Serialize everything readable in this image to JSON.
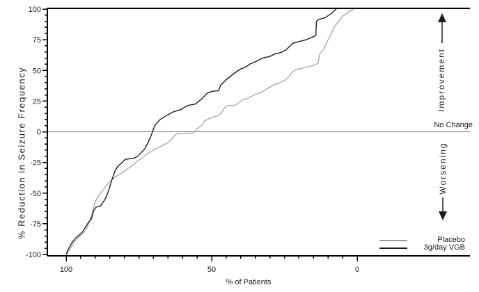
{
  "chart_data": {
    "type": "line",
    "title": "",
    "xlabel": "% of Patients",
    "ylabel": "% Reduction in Seizure Frequency",
    "x_ticks": [
      100,
      50,
      0
    ],
    "y_ticks": [
      100,
      75,
      50,
      25,
      0,
      -25,
      -50,
      -75,
      -100
    ],
    "x_minor_step": 5,
    "y_minor_step": 5,
    "xlim": [
      100,
      0
    ],
    "ylim": [
      -100,
      100
    ],
    "x_axis_reversed": true,
    "grid": "off",
    "reference_line": {
      "y": 0,
      "label": "No Change",
      "color": "#808080"
    },
    "annotations": {
      "improvement": "Improvement",
      "no_change": "No Change",
      "worsening": "Worsening"
    },
    "legend": {
      "position": "bottom-right",
      "entries": [
        "Placebo",
        "3g/day VGB"
      ]
    },
    "axis_color": "#000000",
    "text_color": "#1a1a1a",
    "series": [
      {
        "name": "Placebo",
        "color": "#9c9c9c",
        "points": [
          [
            100,
            -100
          ],
          [
            99,
            -97
          ],
          [
            98,
            -93
          ],
          [
            97,
            -89.5
          ],
          [
            96,
            -87
          ],
          [
            95,
            -84.5
          ],
          [
            94,
            -82.5
          ],
          [
            93.3,
            -80.5
          ],
          [
            92.5,
            -76
          ],
          [
            91.8,
            -72
          ],
          [
            91,
            -66
          ],
          [
            90,
            -57
          ],
          [
            88.8,
            -52
          ],
          [
            87,
            -46.5
          ],
          [
            85.2,
            -41
          ],
          [
            83.2,
            -37
          ],
          [
            81.5,
            -34.5
          ],
          [
            80,
            -32
          ],
          [
            78.5,
            -29.5
          ],
          [
            76.6,
            -26.5
          ],
          [
            75.6,
            -24
          ],
          [
            73.7,
            -21
          ],
          [
            72.5,
            -18.5
          ],
          [
            71.3,
            -17
          ],
          [
            69.4,
            -14
          ],
          [
            67,
            -11.5
          ],
          [
            64.8,
            -8.5
          ],
          [
            63.6,
            -5.5
          ],
          [
            62.5,
            -2.5
          ],
          [
            61.8,
            -1.5
          ],
          [
            56.2,
            -1
          ],
          [
            55,
            2.5
          ],
          [
            53.3,
            5.5
          ],
          [
            52.6,
            8.5
          ],
          [
            50.2,
            11.5
          ],
          [
            47.8,
            13
          ],
          [
            46.6,
            15.5
          ],
          [
            45.4,
            20
          ],
          [
            44.5,
            21.5
          ],
          [
            42.2,
            21.5
          ],
          [
            41.4,
            22.5
          ],
          [
            40.2,
            24.5
          ],
          [
            39,
            26.5
          ],
          [
            37.8,
            27
          ],
          [
            36.6,
            28.5
          ],
          [
            35.4,
            30
          ],
          [
            34.2,
            31
          ],
          [
            33,
            32
          ],
          [
            31.8,
            34
          ],
          [
            30.6,
            35.5
          ],
          [
            29.4,
            37
          ],
          [
            28.2,
            38.5
          ],
          [
            27,
            39.5
          ],
          [
            25.8,
            41
          ],
          [
            24.6,
            42.5
          ],
          [
            23.4,
            45
          ],
          [
            22.2,
            49
          ],
          [
            20.5,
            51
          ],
          [
            17.5,
            52.5
          ],
          [
            15,
            54
          ],
          [
            13.4,
            56
          ],
          [
            12.9,
            63.5
          ],
          [
            11.5,
            67
          ],
          [
            10.3,
            73.5
          ],
          [
            9.1,
            79
          ],
          [
            7.9,
            85
          ],
          [
            6.7,
            89
          ],
          [
            4.8,
            94.5
          ],
          [
            2.6,
            98
          ],
          [
            1.2,
            100
          ]
        ]
      },
      {
        "name": "3g/day VGB",
        "color": "#1a1a1a",
        "points": [
          [
            100,
            -100
          ],
          [
            99.3,
            -96
          ],
          [
            98.4,
            -92
          ],
          [
            97.4,
            -88.5
          ],
          [
            96.4,
            -86
          ],
          [
            95.2,
            -83.5
          ],
          [
            94.3,
            -81.5
          ],
          [
            93.3,
            -77.5
          ],
          [
            92.2,
            -73.5
          ],
          [
            91.3,
            -71
          ],
          [
            90.5,
            -64
          ],
          [
            89.7,
            -61.5
          ],
          [
            88.2,
            -60.5
          ],
          [
            86.6,
            -55
          ],
          [
            85.4,
            -48
          ],
          [
            84.4,
            -40
          ],
          [
            83.3,
            -32.5
          ],
          [
            82.2,
            -28
          ],
          [
            80.9,
            -25.5
          ],
          [
            79.7,
            -22.5
          ],
          [
            78,
            -22
          ],
          [
            76.6,
            -21.5
          ],
          [
            75.4,
            -20
          ],
          [
            74.2,
            -17
          ],
          [
            73,
            -14
          ],
          [
            71.8,
            -8.5
          ],
          [
            70.8,
            -3
          ],
          [
            70.1,
            1.5
          ],
          [
            69.4,
            5.5
          ],
          [
            67.7,
            10
          ],
          [
            65.3,
            13.5
          ],
          [
            62.9,
            16.5
          ],
          [
            60.5,
            18
          ],
          [
            59.3,
            20
          ],
          [
            58.1,
            21.5
          ],
          [
            55.7,
            22.5
          ],
          [
            53.3,
            27
          ],
          [
            51.5,
            31.5
          ],
          [
            49.8,
            33
          ],
          [
            47.6,
            33.5
          ],
          [
            46.9,
            38
          ],
          [
            46.2,
            39.5
          ],
          [
            45,
            42.5
          ],
          [
            43.8,
            44.5
          ],
          [
            42.6,
            47
          ],
          [
            41.4,
            49
          ],
          [
            40.2,
            51
          ],
          [
            39,
            52
          ],
          [
            37.8,
            53.5
          ],
          [
            36.6,
            55.5
          ],
          [
            35.4,
            56.5
          ],
          [
            34.2,
            58
          ],
          [
            33,
            59.5
          ],
          [
            31.8,
            60.5
          ],
          [
            30.6,
            61
          ],
          [
            29.4,
            62
          ],
          [
            28.2,
            63.5
          ],
          [
            27,
            64
          ],
          [
            25.8,
            65
          ],
          [
            24.6,
            66.5
          ],
          [
            23.4,
            69
          ],
          [
            22.2,
            72
          ],
          [
            19.9,
            73.5
          ],
          [
            17.5,
            75
          ],
          [
            15,
            77.5
          ],
          [
            14.2,
            78.5
          ],
          [
            14,
            90
          ],
          [
            13.2,
            91.5
          ],
          [
            11,
            93
          ],
          [
            9.1,
            96
          ],
          [
            7.2,
            100
          ]
        ]
      }
    ]
  }
}
